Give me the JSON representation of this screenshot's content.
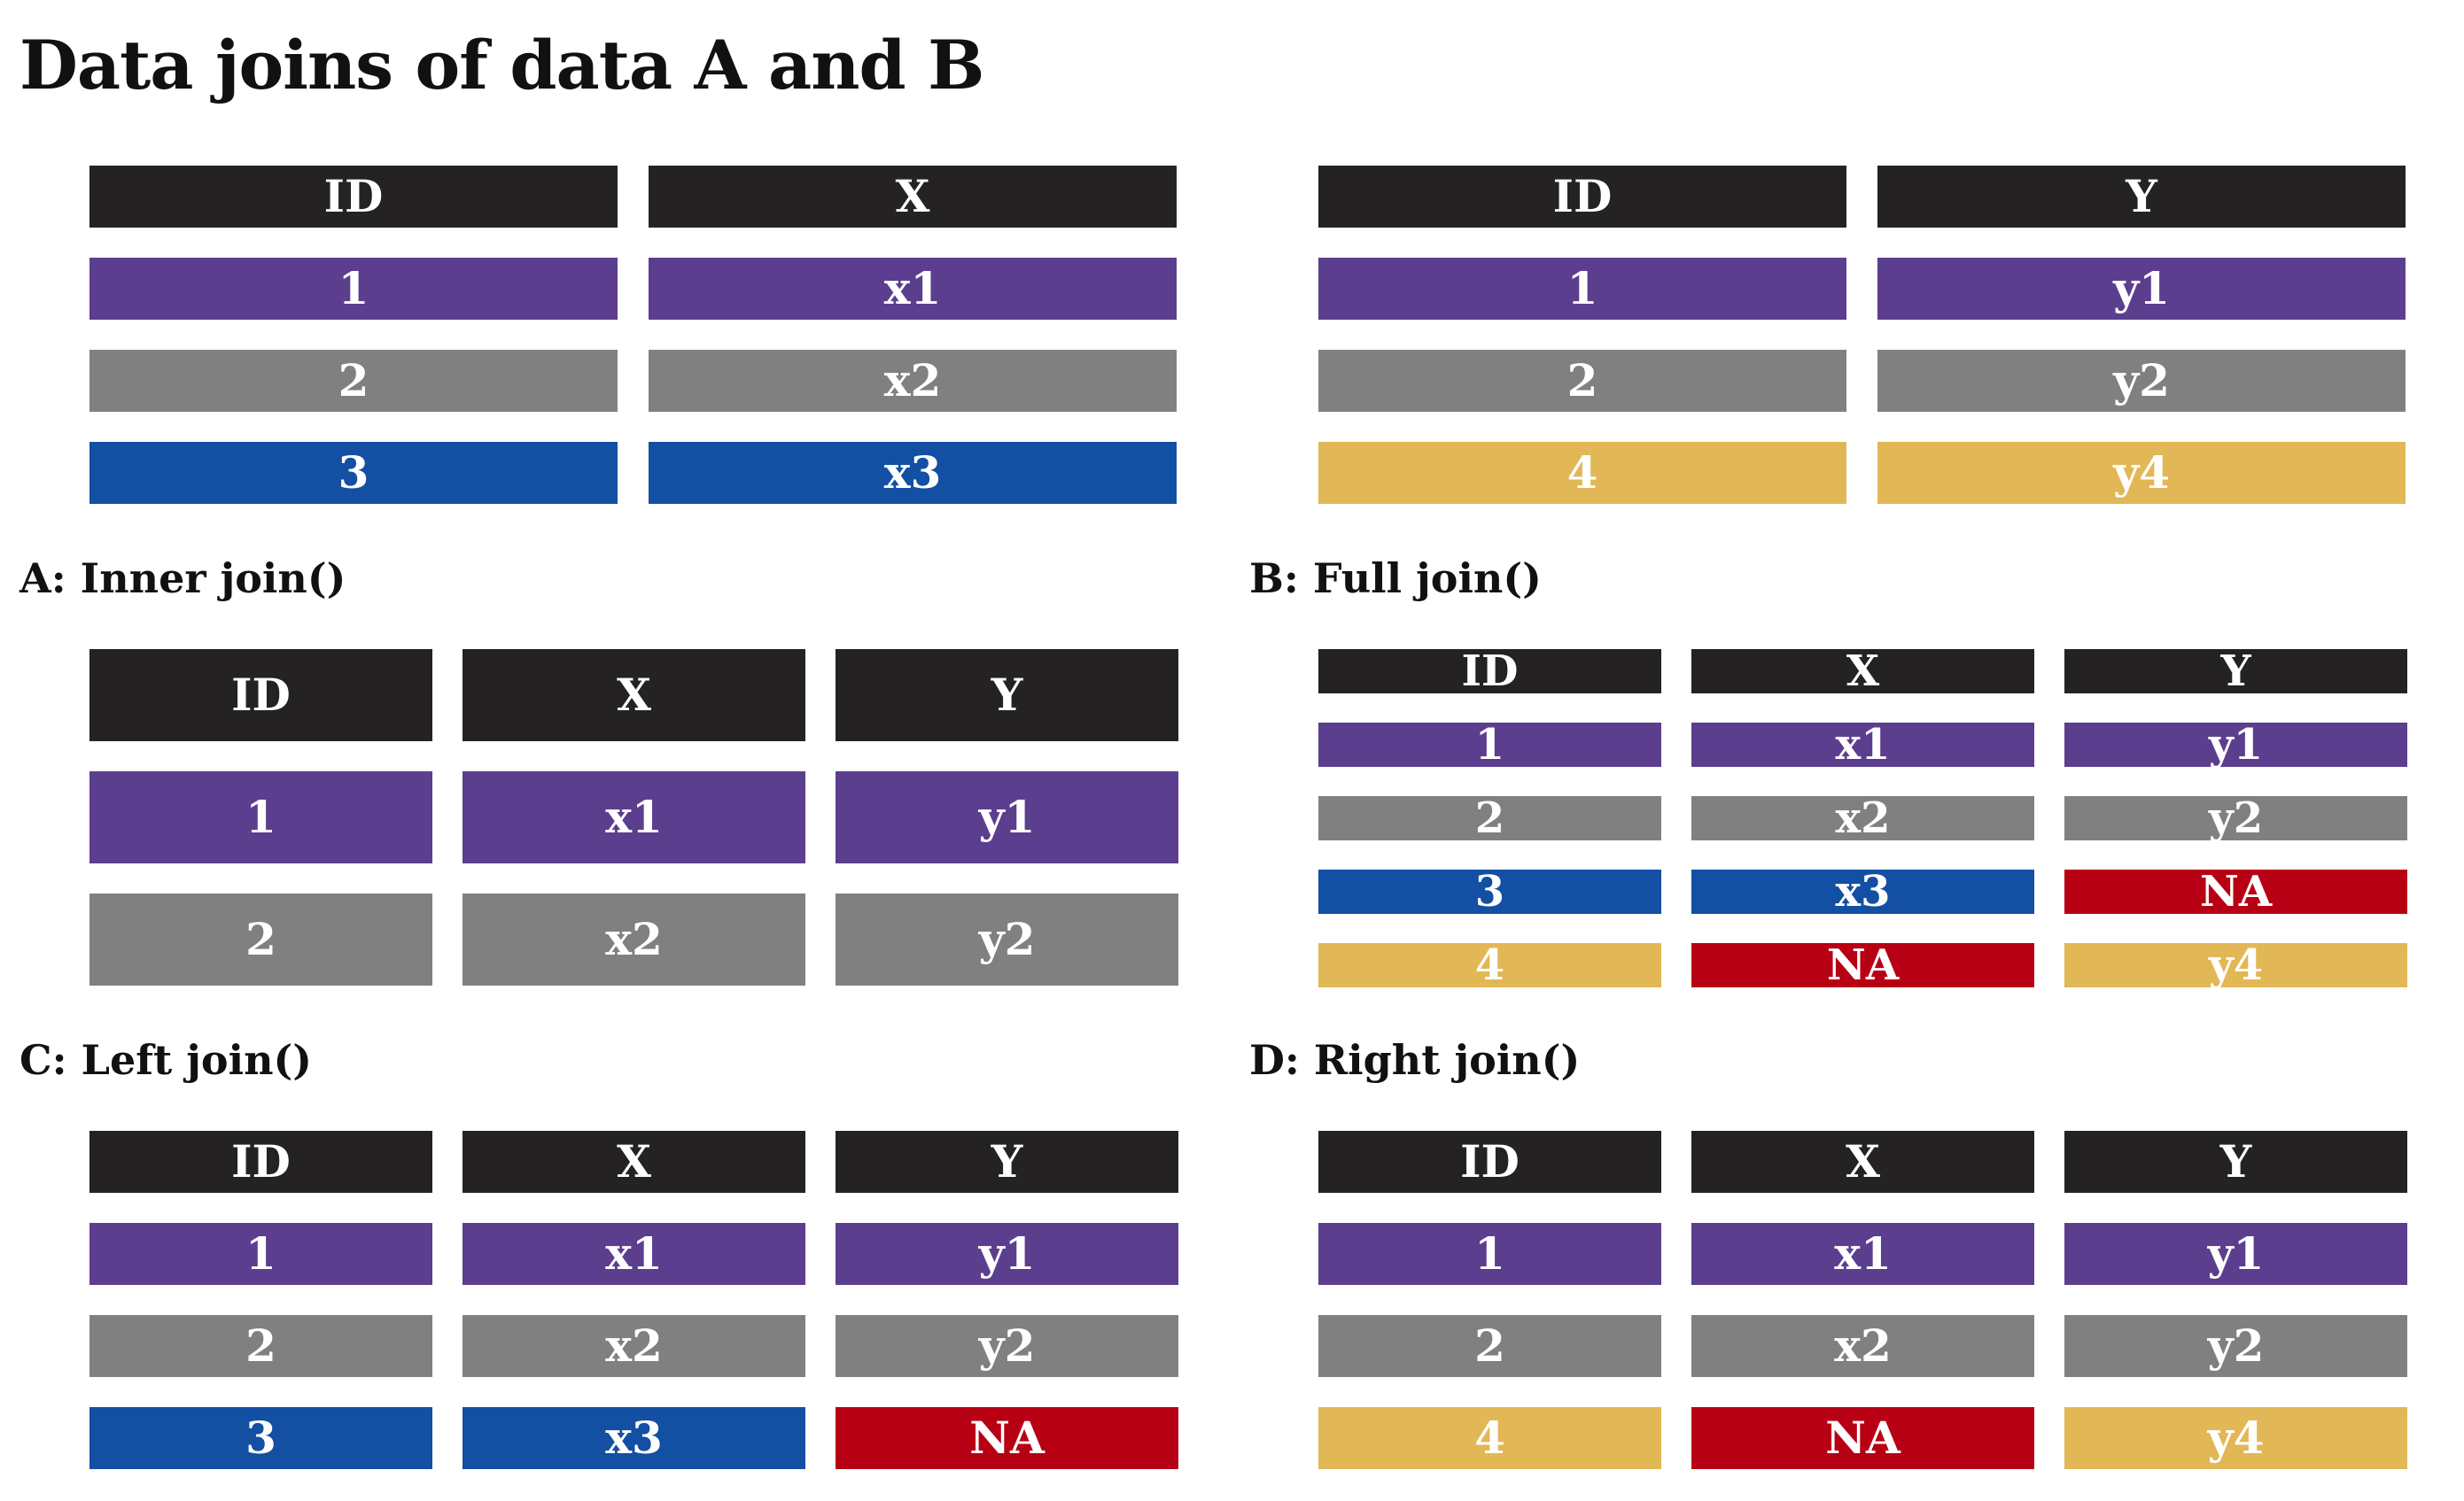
{
  "title": "Data joins of data A and B",
  "colors": {
    "header": "#242223",
    "id_1": "#5c3e8f",
    "id_2": "#818081",
    "id_3": "#134fa3",
    "id_4": "#e2b756",
    "na": "#b80015",
    "text": "#ffffff"
  },
  "table_a": {
    "header": [
      "ID",
      "X"
    ],
    "rows": [
      [
        "1",
        "x1"
      ],
      [
        "2",
        "x2"
      ],
      [
        "3",
        "x3"
      ]
    ]
  },
  "table_b": {
    "header": [
      "ID",
      "Y"
    ],
    "rows": [
      [
        "1",
        "y1"
      ],
      [
        "2",
        "y2"
      ],
      [
        "4",
        "y4"
      ]
    ]
  },
  "joins": {
    "inner": {
      "label": "A: Inner join()",
      "header": [
        "ID",
        "X",
        "Y"
      ],
      "rows": [
        [
          "1",
          "x1",
          "y1"
        ],
        [
          "2",
          "x2",
          "y2"
        ]
      ]
    },
    "full": {
      "label": "B: Full join()",
      "header": [
        "ID",
        "X",
        "Y"
      ],
      "rows": [
        [
          "1",
          "x1",
          "y1"
        ],
        [
          "2",
          "x2",
          "y2"
        ],
        [
          "3",
          "x3",
          "NA"
        ],
        [
          "4",
          "NA",
          "y4"
        ]
      ]
    },
    "left": {
      "label": "C: Left join()",
      "header": [
        "ID",
        "X",
        "Y"
      ],
      "rows": [
        [
          "1",
          "x1",
          "y1"
        ],
        [
          "2",
          "x2",
          "y2"
        ],
        [
          "3",
          "x3",
          "NA"
        ]
      ]
    },
    "right": {
      "label": "D: Right join()",
      "header": [
        "ID",
        "X",
        "Y"
      ],
      "rows": [
        [
          "1",
          "x1",
          "y1"
        ],
        [
          "2",
          "x2",
          "y2"
        ],
        [
          "4",
          "NA",
          "y4"
        ]
      ]
    }
  }
}
